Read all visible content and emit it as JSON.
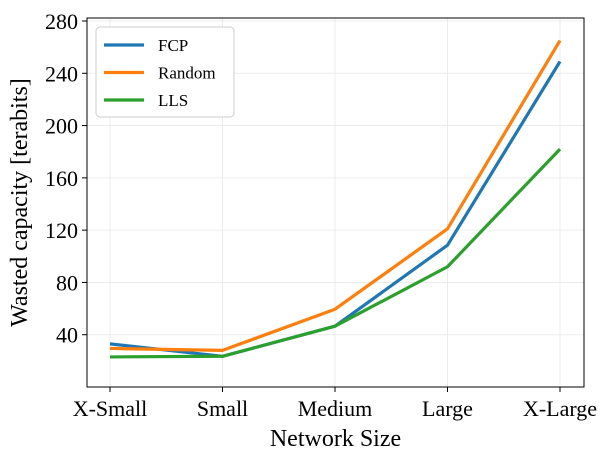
{
  "chart_data": {
    "type": "line",
    "categories": [
      "X-Small",
      "Small",
      "Medium",
      "Large",
      "X-Large"
    ],
    "series": [
      {
        "name": "FCP",
        "color": "#1f77b4",
        "values": [
          33,
          23.5,
          46.5,
          108.5,
          249
        ]
      },
      {
        "name": "Random",
        "color": "#ff7f0e",
        "values": [
          29.5,
          28,
          59.5,
          121,
          265
        ]
      },
      {
        "name": "LLS",
        "color": "#2ca02c",
        "values": [
          23,
          23.5,
          46.5,
          92,
          182
        ]
      }
    ],
    "xlabel": "Network Size",
    "ylabel": "Wasted capacity [terabits]",
    "ylim": [
      0,
      280
    ],
    "yticks": [
      40,
      80,
      120,
      160,
      200,
      240,
      280
    ],
    "grid": true,
    "legend_position": "top-left"
  }
}
